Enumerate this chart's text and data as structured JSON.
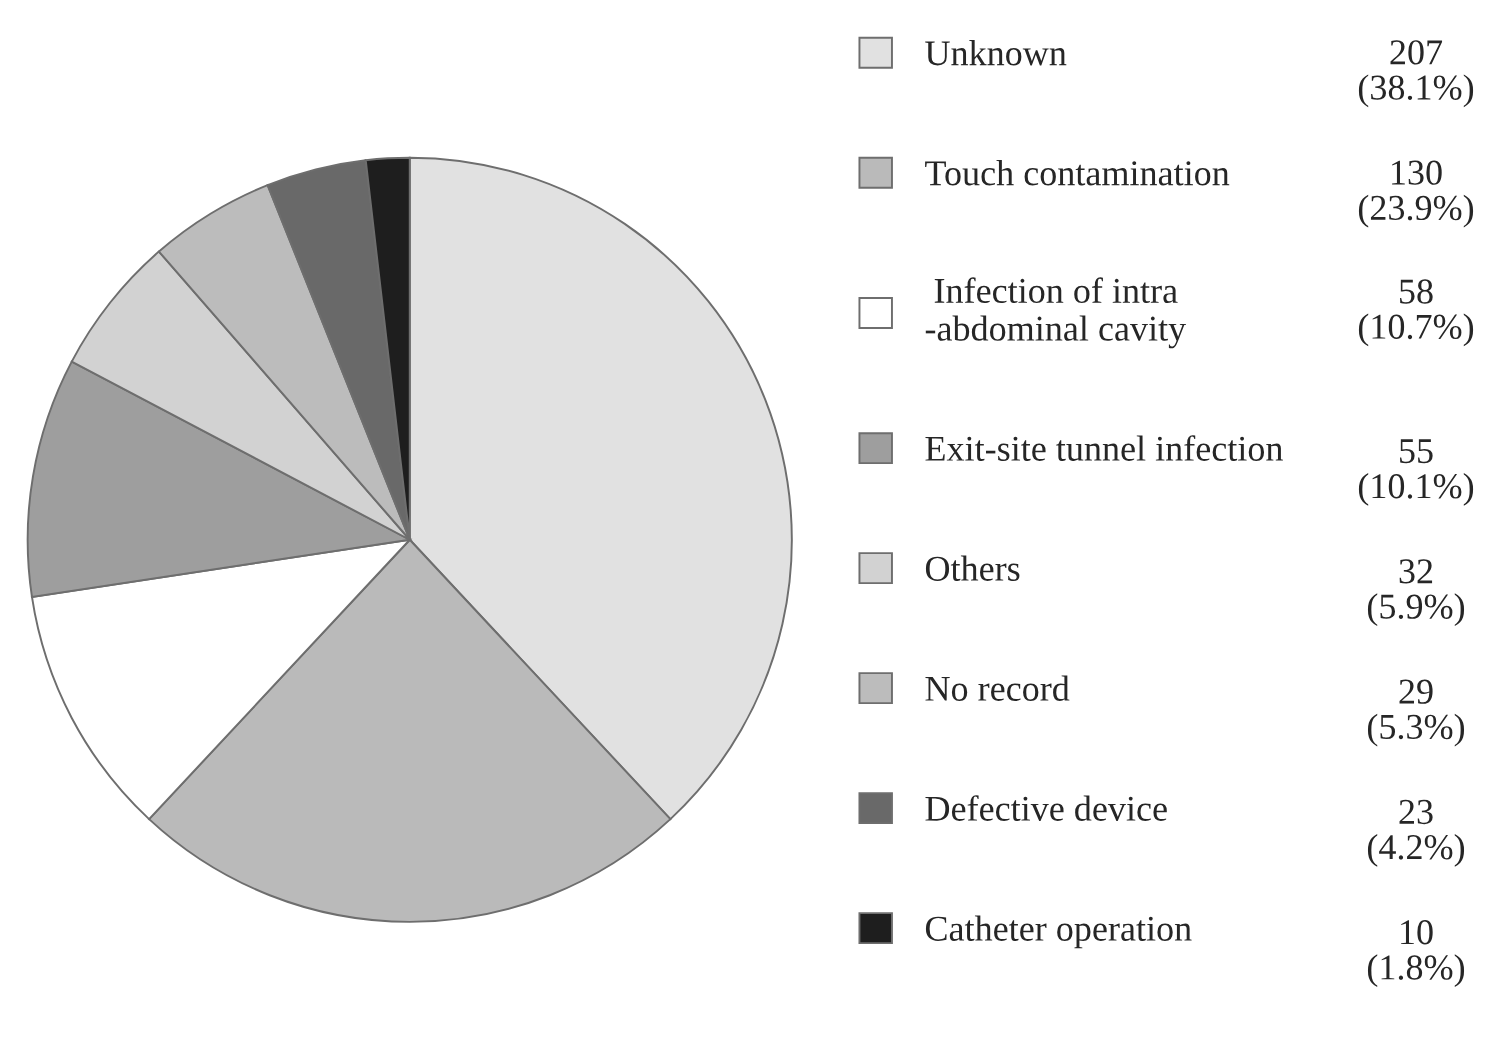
{
  "chart_data": {
    "type": "pie",
    "categories": [
      "Unknown",
      "Touch contamination",
      " Infection of intra\n-abdominal cavity",
      "Exit-site tunnel infection",
      "Others",
      "No record",
      "Defective device",
      "Catheter operation"
    ],
    "values": [
      207,
      130,
      58,
      55,
      32,
      29,
      23,
      10
    ],
    "colors": [
      "#e1e1e1",
      "#bababa",
      "#ffffff",
      "#9e9e9e",
      "#d2d2d2",
      "#bcbcbc",
      "#696969",
      "#1e1e1e"
    ],
    "value_labels": [
      "207\n(38.1%)",
      "130\n(23.9%)",
      "58\n(10.7%)",
      "55\n(10.1%)",
      "32\n(5.9%)",
      "29\n(5.3%)",
      "23\n(4.2%)",
      "10\n(1.8%)"
    ],
    "legend": "right"
  }
}
